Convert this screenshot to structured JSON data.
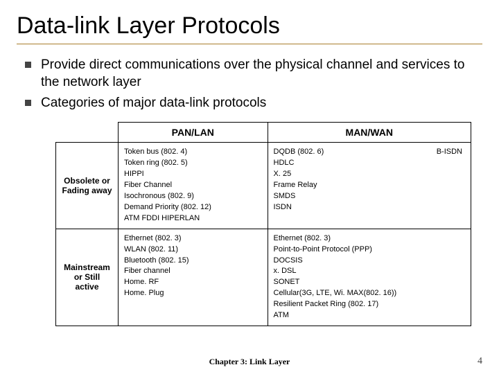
{
  "title": "Data-link Layer Protocols",
  "bullets": [
    "Provide direct communications over the physical channel and services to the network layer",
    "Categories of major data-link protocols"
  ],
  "table": {
    "col1_header": "PAN/LAN",
    "col2_header": "MAN/WAN",
    "row1_label": "Obsolete or Fading away",
    "row2_label": "Mainstream or Still active",
    "r1c1": "Token bus (802. 4)\nToken ring (802. 5)\nHIPPI\nFiber Channel\nIsochronous (802. 9)\nDemand Priority (802. 12)\nATM   FDDI   HIPERLAN",
    "r1c2a": "DQDB (802. 6)\nHDLC\nX. 25\nFrame Relay\nSMDS\nISDN",
    "r1c2b": "B-ISDN",
    "r2c1": "Ethernet (802. 3)\nWLAN (802. 11)\nBluetooth (802. 15)\nFiber channel\nHome. RF\nHome. Plug",
    "r2c2": "Ethernet (802. 3)\nPoint-to-Point Protocol (PPP)\nDOCSIS\nx. DSL\nSONET\nCellular(3G, LTE, Wi. MAX(802. 16))\nResilient Packet Ring (802. 17)\nATM"
  },
  "footer": "Chapter 3: Link Layer",
  "pagenum": "4"
}
